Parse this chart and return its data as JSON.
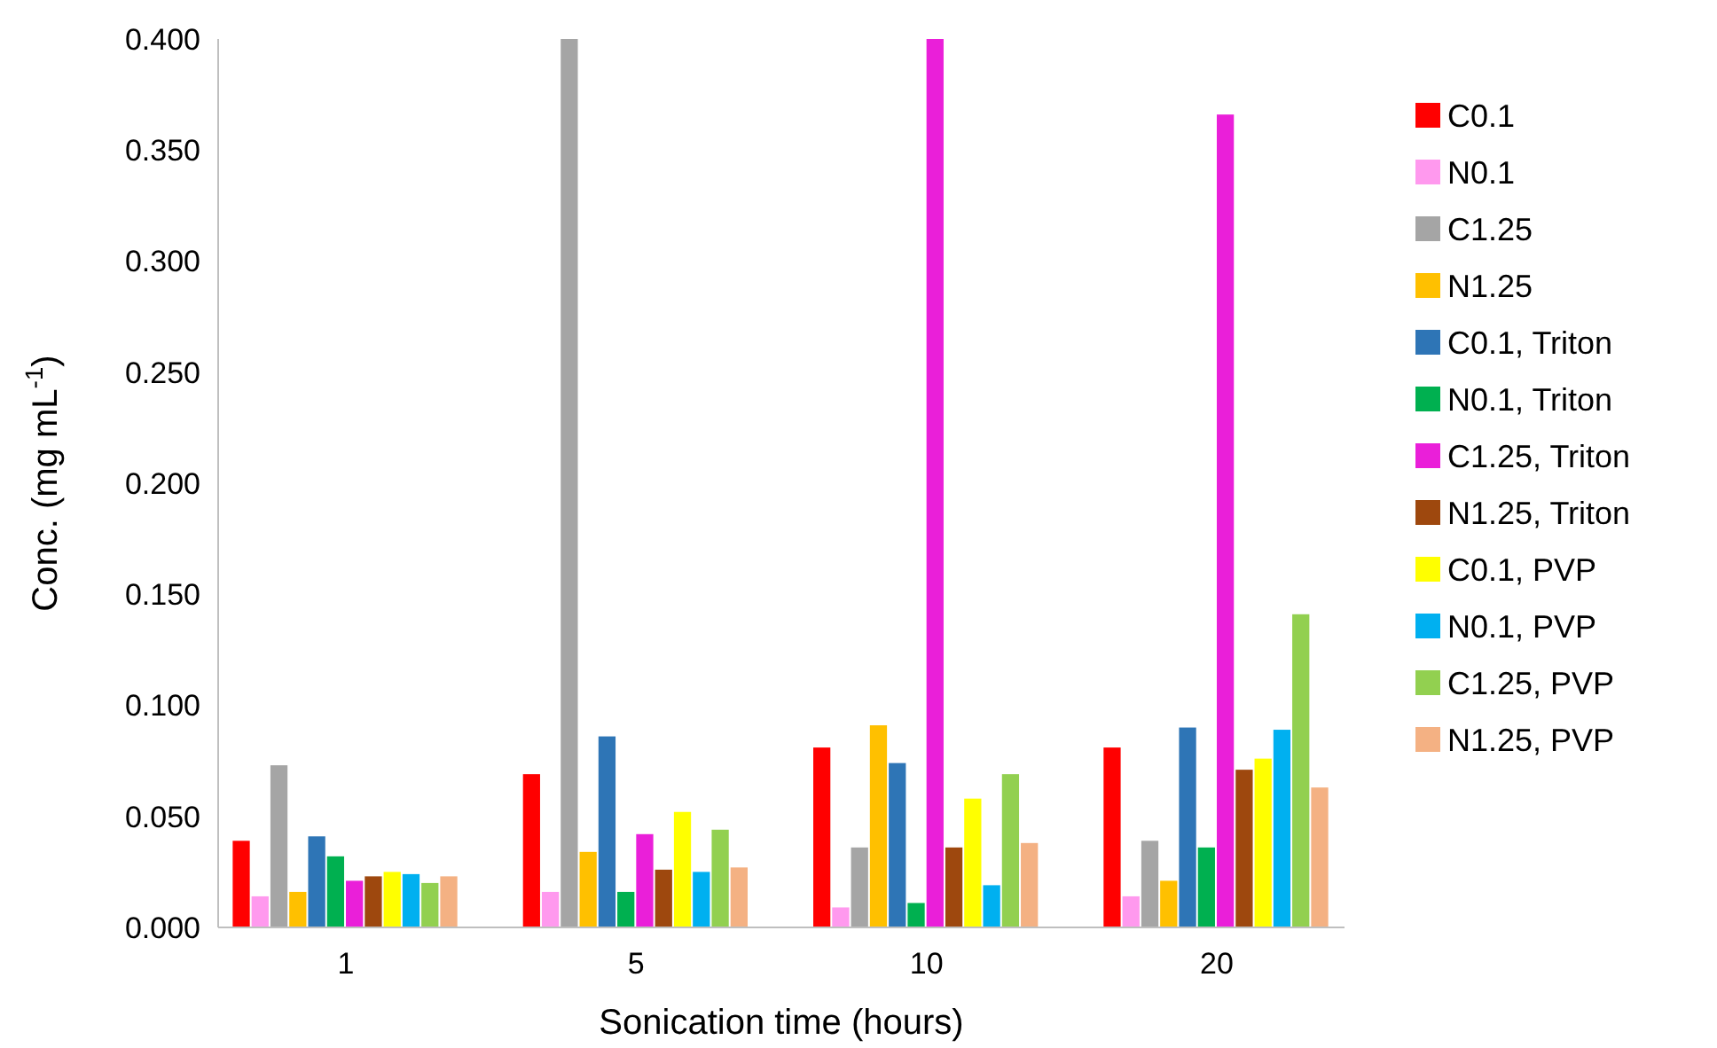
{
  "chart_data": {
    "type": "bar",
    "xlabel": "Sonication time (hours)",
    "ylabel": "Conc. (mg mL$^{-1}$)",
    "categories": [
      "1",
      "5",
      "10",
      "20"
    ],
    "ylim": [
      0,
      0.4
    ],
    "yticks": [
      {
        "value": 0,
        "label": "0.000"
      },
      {
        "value": 0.05,
        "label": "0.050"
      },
      {
        "value": 0.1,
        "label": "0.100"
      },
      {
        "value": 0.15,
        "label": "0.150"
      },
      {
        "value": 0.2,
        "label": "0.200"
      },
      {
        "value": 0.25,
        "label": "0.250"
      },
      {
        "value": 0.3,
        "label": "0.300"
      },
      {
        "value": 0.35,
        "label": "0.350"
      },
      {
        "value": 0.4,
        "label": "0.400"
      }
    ],
    "grid": false,
    "legend": "right",
    "series": [
      {
        "name": "C0.1",
        "color": "#ff0000",
        "values": [
          0.039,
          0.069,
          0.081,
          0.081
        ]
      },
      {
        "name": "N0.1",
        "color": "#ff99ee",
        "values": [
          0.014,
          0.016,
          0.009,
          0.014
        ]
      },
      {
        "name": "C1.25",
        "color": "#a5a5a5",
        "values": [
          0.073,
          0.4,
          0.036,
          0.039
        ]
      },
      {
        "name": "N1.25",
        "color": "#ffc000",
        "values": [
          0.016,
          0.034,
          0.091,
          0.021
        ]
      },
      {
        "name": "C0.1, Triton",
        "color": "#2e75b6",
        "values": [
          0.041,
          0.086,
          0.074,
          0.09
        ]
      },
      {
        "name": "N0.1, Triton",
        "color": "#00b050",
        "values": [
          0.032,
          0.016,
          0.011,
          0.036
        ]
      },
      {
        "name": "C1.25, Triton",
        "color": "#ea1fd9",
        "values": [
          0.021,
          0.042,
          0.4,
          0.366
        ]
      },
      {
        "name": "N1.25, Triton",
        "color": "#9e480e",
        "values": [
          0.023,
          0.026,
          0.036,
          0.071
        ]
      },
      {
        "name": "C0.1, PVP",
        "color": "#ffff00",
        "values": [
          0.025,
          0.052,
          0.058,
          0.076
        ]
      },
      {
        "name": "N0.1, PVP",
        "color": "#00b0f0",
        "values": [
          0.024,
          0.025,
          0.019,
          0.089
        ]
      },
      {
        "name": "C1.25, PVP",
        "color": "#92d050",
        "values": [
          0.02,
          0.044,
          0.069,
          0.141
        ]
      },
      {
        "name": "N1.25, PVP",
        "color": "#f4b183",
        "values": [
          0.023,
          0.027,
          0.038,
          0.063
        ]
      }
    ]
  }
}
